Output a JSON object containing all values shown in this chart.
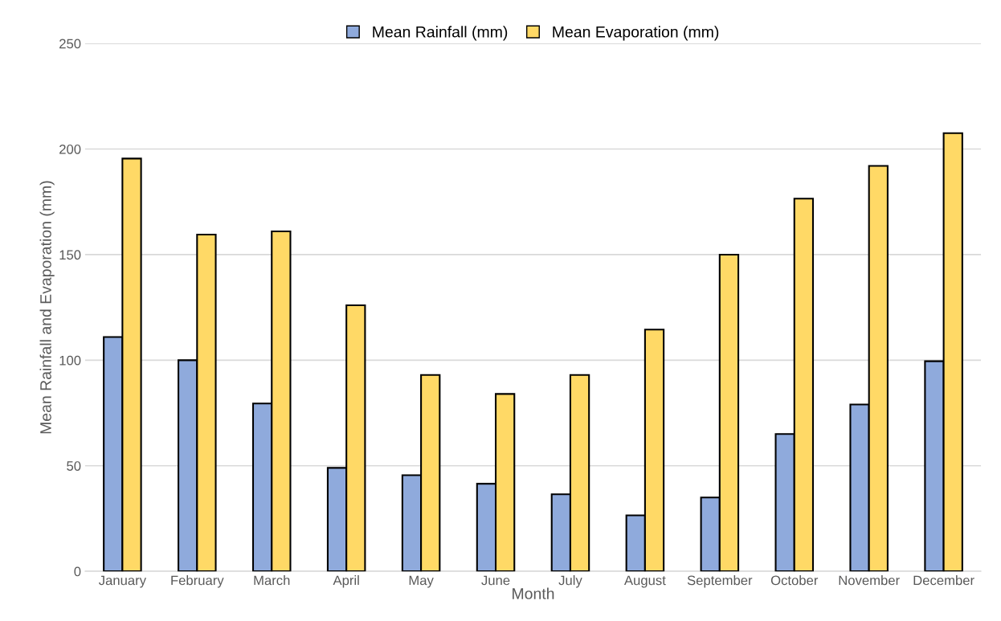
{
  "chart_data": {
    "type": "bar",
    "xlabel": "Month",
    "ylabel": "Mean Rainfall and Evaporation (mm)",
    "categories": [
      "January",
      "February",
      "March",
      "April",
      "May",
      "June",
      "July",
      "August",
      "September",
      "October",
      "November",
      "December"
    ],
    "series": [
      {
        "name": "Mean Rainfall (mm)",
        "color": "#8faadc",
        "values": [
          111,
          100,
          79.5,
          49,
          45.5,
          41.5,
          36.5,
          26.5,
          35,
          65,
          79,
          99.5
        ]
      },
      {
        "name": "Mean Evaporation (mm)",
        "color": "#ffd966",
        "values": [
          195.5,
          159.5,
          161,
          126,
          93,
          84,
          93,
          114.5,
          150,
          176.5,
          192,
          207.5
        ]
      }
    ],
    "ylim": [
      0,
      250
    ],
    "yticks": [
      0,
      50,
      100,
      150,
      200,
      250
    ],
    "grid": "y",
    "legend": "top"
  }
}
